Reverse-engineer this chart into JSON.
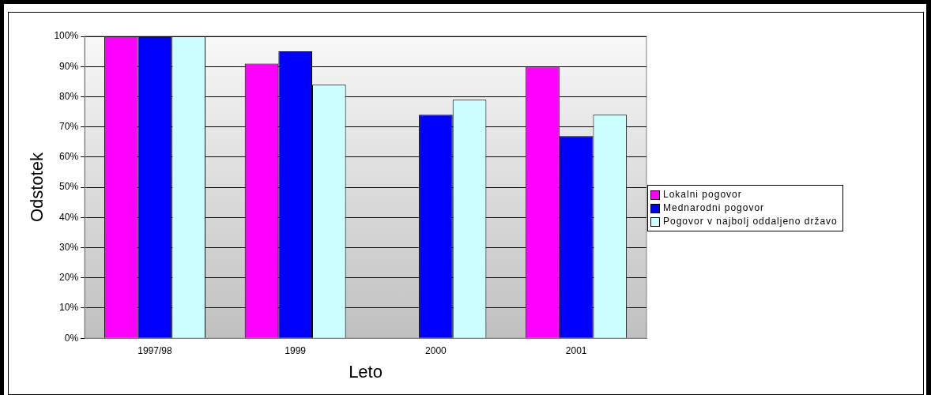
{
  "chart_data": {
    "type": "bar",
    "xlabel": "Leto",
    "ylabel": "Odstotek",
    "categories": [
      "1997/98",
      "1999",
      "2000",
      "2001"
    ],
    "series": [
      {
        "name": "Lokalni pogovor",
        "color": "#ff00ff",
        "values": [
          100,
          91,
          null,
          90
        ]
      },
      {
        "name": "Mednarodni pogovor",
        "color": "#0000ff",
        "values": [
          100,
          95,
          74,
          67
        ]
      },
      {
        "name": "Pogovor v najbolj oddaljeno državo",
        "color": "#ccffff",
        "values": [
          100,
          84,
          79,
          74
        ]
      }
    ],
    "ylim": [
      0,
      100
    ],
    "yticks": [
      {
        "value": 0,
        "label": "0%"
      },
      {
        "value": 10,
        "label": "10%"
      },
      {
        "value": 20,
        "label": "20%"
      },
      {
        "value": 30,
        "label": "30%"
      },
      {
        "value": 40,
        "label": "40%"
      },
      {
        "value": 50,
        "label": "50%"
      },
      {
        "value": 60,
        "label": "60%"
      },
      {
        "value": 70,
        "label": "70%"
      },
      {
        "value": 80,
        "label": "80%"
      },
      {
        "value": 90,
        "label": "90%"
      },
      {
        "value": 100,
        "label": "100%"
      }
    ],
    "grid": "y",
    "legend": "right"
  }
}
